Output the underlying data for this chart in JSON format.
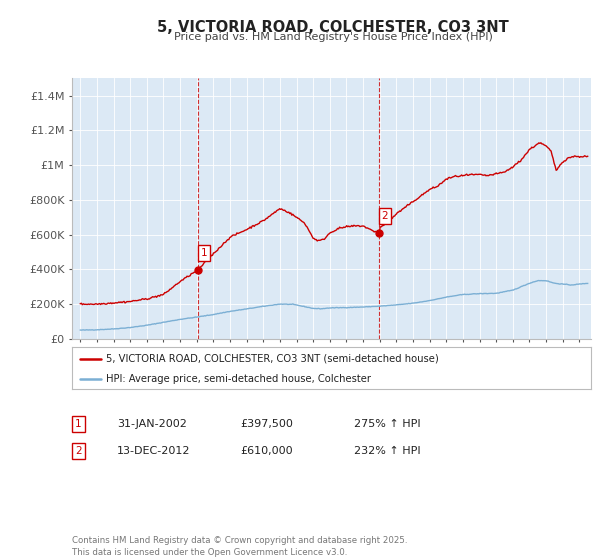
{
  "title": "5, VICTORIA ROAD, COLCHESTER, CO3 3NT",
  "subtitle": "Price paid vs. HM Land Registry's House Price Index (HPI)",
  "fig_bg_color": "#ffffff",
  "plot_bg_color": "#dce9f5",
  "grid_color": "#ffffff",
  "hpi_color": "#7bafd4",
  "price_color": "#cc0000",
  "ylim": [
    0,
    1500000
  ],
  "yticks": [
    0,
    200000,
    400000,
    600000,
    800000,
    1000000,
    1200000,
    1400000
  ],
  "ytick_labels": [
    "£0",
    "£200K",
    "£400K",
    "£600K",
    "£800K",
    "£1M",
    "£1.2M",
    "£1.4M"
  ],
  "xlim_start": 1994.5,
  "xlim_end": 2025.7,
  "marker1_x": 2002.08,
  "marker1_y": 397500,
  "marker2_x": 2012.96,
  "marker2_y": 610000,
  "legend_line1": "5, VICTORIA ROAD, COLCHESTER, CO3 3NT (semi-detached house)",
  "legend_line2": "HPI: Average price, semi-detached house, Colchester",
  "annotation1_date": "31-JAN-2002",
  "annotation1_price": "£397,500",
  "annotation1_hpi": "275% ↑ HPI",
  "annotation2_date": "13-DEC-2012",
  "annotation2_price": "£610,000",
  "annotation2_hpi": "232% ↑ HPI",
  "footer": "Contains HM Land Registry data © Crown copyright and database right 2025.\nThis data is licensed under the Open Government Licence v3.0."
}
